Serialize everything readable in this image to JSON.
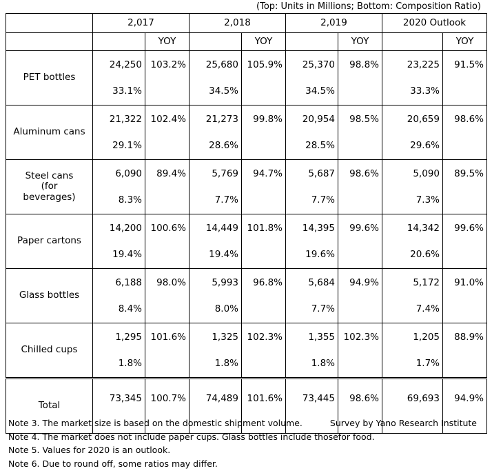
{
  "units_label": "(Top: Units in Millions; Bottom: Composition Ratio)",
  "headers": {
    "years": [
      "2,017",
      "2,018",
      "2,019",
      "2020 Outlook"
    ],
    "yoy": "YOY"
  },
  "rows": [
    {
      "label": "PET bottles",
      "cells": [
        {
          "value": "24,250",
          "yoy": "103.2%",
          "ratio": "33.1%"
        },
        {
          "value": "25,680",
          "yoy": "105.9%",
          "ratio": "34.5%"
        },
        {
          "value": "25,370",
          "yoy": "98.8%",
          "ratio": "34.5%"
        },
        {
          "value": "23,225",
          "yoy": "91.5%",
          "ratio": "33.3%"
        }
      ]
    },
    {
      "label": "Aluminum cans",
      "cells": [
        {
          "value": "21,322",
          "yoy": "102.4%",
          "ratio": "29.1%"
        },
        {
          "value": "21,273",
          "yoy": "99.8%",
          "ratio": "28.6%"
        },
        {
          "value": "20,954",
          "yoy": "98.5%",
          "ratio": "28.5%"
        },
        {
          "value": "20,659",
          "yoy": "98.6%",
          "ratio": "29.6%"
        }
      ]
    },
    {
      "label_lines": [
        "Steel cans",
        "(for",
        "beverages)"
      ],
      "cells": [
        {
          "value": "6,090",
          "yoy": "89.4%",
          "ratio": "8.3%"
        },
        {
          "value": "5,769",
          "yoy": "94.7%",
          "ratio": "7.7%"
        },
        {
          "value": "5,687",
          "yoy": "98.6%",
          "ratio": "7.7%"
        },
        {
          "value": "5,090",
          "yoy": "89.5%",
          "ratio": "7.3%"
        }
      ]
    },
    {
      "label": "Paper cartons",
      "cells": [
        {
          "value": "14,200",
          "yoy": "100.6%",
          "ratio": "19.4%"
        },
        {
          "value": "14,449",
          "yoy": "101.8%",
          "ratio": "19.4%"
        },
        {
          "value": "14,395",
          "yoy": "99.6%",
          "ratio": "19.6%"
        },
        {
          "value": "14,342",
          "yoy": "99.6%",
          "ratio": "20.6%"
        }
      ]
    },
    {
      "label": "Glass bottles",
      "cells": [
        {
          "value": "6,188",
          "yoy": "98.0%",
          "ratio": "8.4%"
        },
        {
          "value": "5,993",
          "yoy": "96.8%",
          "ratio": "8.0%"
        },
        {
          "value": "5,684",
          "yoy": "94.9%",
          "ratio": "7.7%"
        },
        {
          "value": "5,172",
          "yoy": "91.0%",
          "ratio": "7.4%"
        }
      ]
    },
    {
      "label": "Chilled cups",
      "cells": [
        {
          "value": "1,295",
          "yoy": "101.6%",
          "ratio": "1.8%"
        },
        {
          "value": "1,325",
          "yoy": "102.3%",
          "ratio": "1.8%"
        },
        {
          "value": "1,355",
          "yoy": "102.3%",
          "ratio": "1.8%"
        },
        {
          "value": "1,205",
          "yoy": "88.9%",
          "ratio": "1.7%"
        }
      ]
    }
  ],
  "total": {
    "label": "Total",
    "cells": [
      {
        "value": "73,345",
        "yoy": "100.7%"
      },
      {
        "value": "74,489",
        "yoy": "101.6%"
      },
      {
        "value": "73,445",
        "yoy": "98.6%"
      },
      {
        "value": "69,693",
        "yoy": "94.9%"
      }
    ]
  },
  "notes": [
    "Note 3.  The market size is based on the domestic shipment volume.",
    "Note 4.  The market does not include paper cups. Glass bottles include thosefor food.",
    "Note 5.  Values for 2020 is an outlook.",
    "Note 6.  Due to round off, some ratios may differ."
  ],
  "credit": "Survey by Yano Research Institute"
}
